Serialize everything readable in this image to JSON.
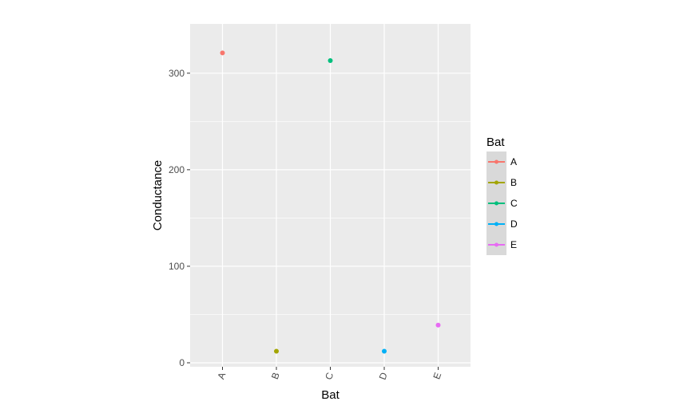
{
  "chart_data": {
    "type": "scatter",
    "xlabel": "Bat",
    "ylabel": "Conductance",
    "categories": [
      "A",
      "B",
      "C",
      "D",
      "E"
    ],
    "values": [
      321,
      12,
      313,
      12,
      39
    ],
    "ylim": [
      0,
      337
    ],
    "yticks": [
      0,
      100,
      200,
      300
    ],
    "grid": true,
    "legend": {
      "title": "Bat",
      "position": "right",
      "entries": [
        "A",
        "B",
        "C",
        "D",
        "E"
      ]
    },
    "colors": [
      "#F8766D",
      "#A3A500",
      "#00BF7D",
      "#00B0F6",
      "#E76BF3"
    ],
    "panel_color": "#EBEBEB",
    "grid_color": "#FFFFFF"
  }
}
